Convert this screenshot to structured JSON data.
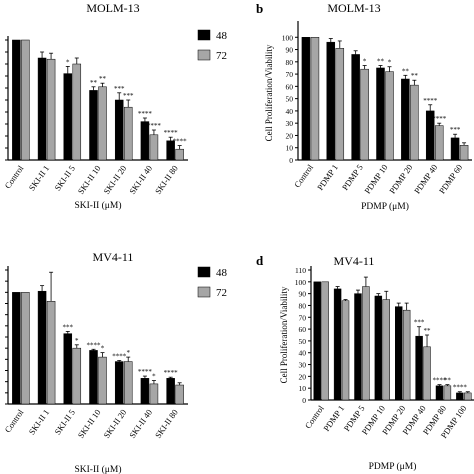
{
  "colors": {
    "series_48": "#000000",
    "series_72": "#a6a6a6",
    "axis": "#000000",
    "background": "#ffffff"
  },
  "chart_data": [
    {
      "panel_letter": "",
      "title": "MOLM-13",
      "type": "bar",
      "xlabel": "SKI-II (μM)",
      "ylabel": "",
      "categories": [
        "Control",
        "SKI-II 1",
        "SKI-II 5",
        "SKI-II 10",
        "SKI-II 20",
        "SKI-II 40",
        "SKI-II 80"
      ],
      "ylim": [
        0,
        100
      ],
      "y_ticks": [],
      "legend_position": "top-right",
      "series": [
        {
          "name": "48",
          "values": [
            100,
            85,
            72,
            58,
            50,
            32,
            16
          ],
          "errors": [
            0,
            5,
            6,
            3,
            6,
            3,
            3
          ]
        },
        {
          "name": "72",
          "values": [
            100,
            84,
            80,
            61,
            44,
            21,
            9
          ],
          "errors": [
            0,
            5,
            5,
            3,
            6,
            4,
            3
          ]
        }
      ],
      "annotations": [
        {
          "category_index": 2,
          "series": 0,
          "text": "*"
        },
        {
          "category_index": 3,
          "series": 0,
          "text": "**"
        },
        {
          "category_index": 3,
          "series": 1,
          "text": "**"
        },
        {
          "category_index": 4,
          "series": 0,
          "text": "***"
        },
        {
          "category_index": 4,
          "series": 1,
          "text": "***"
        },
        {
          "category_index": 5,
          "series": 0,
          "text": "****"
        },
        {
          "category_index": 5,
          "series": 1,
          "text": "****"
        },
        {
          "category_index": 6,
          "series": 0,
          "text": "****"
        },
        {
          "category_index": 6,
          "series": 1,
          "text": "****"
        }
      ]
    },
    {
      "panel_letter": "b",
      "title": "MOLM-13",
      "type": "bar",
      "xlabel": "PDMP (μM)",
      "ylabel": "Cell Proliferation/Viability",
      "categories": [
        "Control",
        "PDMP 1",
        "PDMP 5",
        "PDMP 10",
        "PDMP 20",
        "PDMP 40",
        "PDMP 60"
      ],
      "ylim": [
        0,
        110
      ],
      "y_ticks": [
        0,
        10,
        20,
        30,
        40,
        50,
        60,
        70,
        80,
        90,
        100
      ],
      "legend_position": "",
      "series": [
        {
          "name": "",
          "values": [
            100,
            96,
            86,
            75,
            66,
            40,
            18
          ],
          "errors": [
            0,
            3,
            3,
            2,
            3,
            5,
            3
          ]
        },
        {
          "name": "",
          "values": [
            100,
            91,
            74,
            72,
            61,
            28,
            12
          ],
          "errors": [
            0,
            6,
            3,
            4,
            4,
            2,
            2
          ]
        }
      ],
      "annotations": [
        {
          "category_index": 2,
          "series": 1,
          "text": "*"
        },
        {
          "category_index": 3,
          "series": 0,
          "text": "**"
        },
        {
          "category_index": 3,
          "series": 1,
          "text": "*"
        },
        {
          "category_index": 4,
          "series": 0,
          "text": "**"
        },
        {
          "category_index": 4,
          "series": 1,
          "text": "**"
        },
        {
          "category_index": 5,
          "series": 0,
          "text": "****"
        },
        {
          "category_index": 5,
          "series": 1,
          "text": "****"
        },
        {
          "category_index": 6,
          "series": 0,
          "text": "***"
        }
      ]
    },
    {
      "panel_letter": "",
      "title": "MV4-11",
      "type": "bar",
      "xlabel": "SKI-II (μM)",
      "ylabel": "",
      "categories": [
        "Control",
        "SKI-II 1",
        "SKI-II 5",
        "SKI-II 10",
        "SKI-II 20",
        "SKI-II 40",
        "SKI-II 80"
      ],
      "ylim": [
        0,
        120
      ],
      "y_ticks": [],
      "legend_position": "top-right",
      "series": [
        {
          "name": "48",
          "values": [
            100,
            101,
            63,
            48,
            38,
            23,
            23
          ],
          "errors": [
            0,
            5,
            2,
            1,
            1,
            2,
            1
          ]
        },
        {
          "name": "72",
          "values": [
            100,
            92,
            50,
            42,
            38,
            18,
            17
          ],
          "errors": [
            0,
            26,
            3,
            4,
            4,
            3,
            2
          ]
        }
      ],
      "annotations": [
        {
          "category_index": 2,
          "series": 0,
          "text": "***"
        },
        {
          "category_index": 2,
          "series": 1,
          "text": "*"
        },
        {
          "category_index": 3,
          "series": 0,
          "text": "****"
        },
        {
          "category_index": 3,
          "series": 1,
          "text": "*"
        },
        {
          "category_index": 4,
          "series": 0,
          "text": "****"
        },
        {
          "category_index": 4,
          "series": 1,
          "text": "*"
        },
        {
          "category_index": 5,
          "series": 0,
          "text": "****"
        },
        {
          "category_index": 5,
          "series": 1,
          "text": "*"
        },
        {
          "category_index": 6,
          "series": 0,
          "text": "****"
        }
      ]
    },
    {
      "panel_letter": "d",
      "title": "MV4-11",
      "type": "bar",
      "xlabel": "PDMP (μM)",
      "ylabel": "Cell Proliferation/Viability",
      "categories": [
        "Control",
        "PDMP 1",
        "PDMP 5",
        "PDMP 10",
        "PDMP 20",
        "PDMP 40",
        "PDMP 80",
        "PDMP 100"
      ],
      "ylim": [
        0,
        110
      ],
      "y_ticks": [
        0,
        10,
        20,
        30,
        40,
        50,
        60,
        70,
        80,
        90,
        100,
        110
      ],
      "legend_position": "",
      "series": [
        {
          "name": "",
          "values": [
            100,
            94,
            90,
            88,
            79,
            54,
            12,
            6
          ],
          "errors": [
            0,
            2,
            3,
            2,
            3,
            8,
            1,
            1
          ]
        },
        {
          "name": "",
          "values": [
            100,
            84,
            96,
            85,
            76,
            45,
            12,
            6
          ],
          "errors": [
            0,
            1,
            8,
            7,
            6,
            10,
            1,
            1
          ]
        }
      ],
      "annotations": [
        {
          "category_index": 5,
          "series": 0,
          "text": "***"
        },
        {
          "category_index": 5,
          "series": 1,
          "text": "**"
        },
        {
          "category_index": 6,
          "series": 0,
          "text": "****"
        },
        {
          "category_index": 6,
          "series": 1,
          "text": "**"
        },
        {
          "category_index": 7,
          "series": 0,
          "text": "****"
        }
      ]
    }
  ]
}
